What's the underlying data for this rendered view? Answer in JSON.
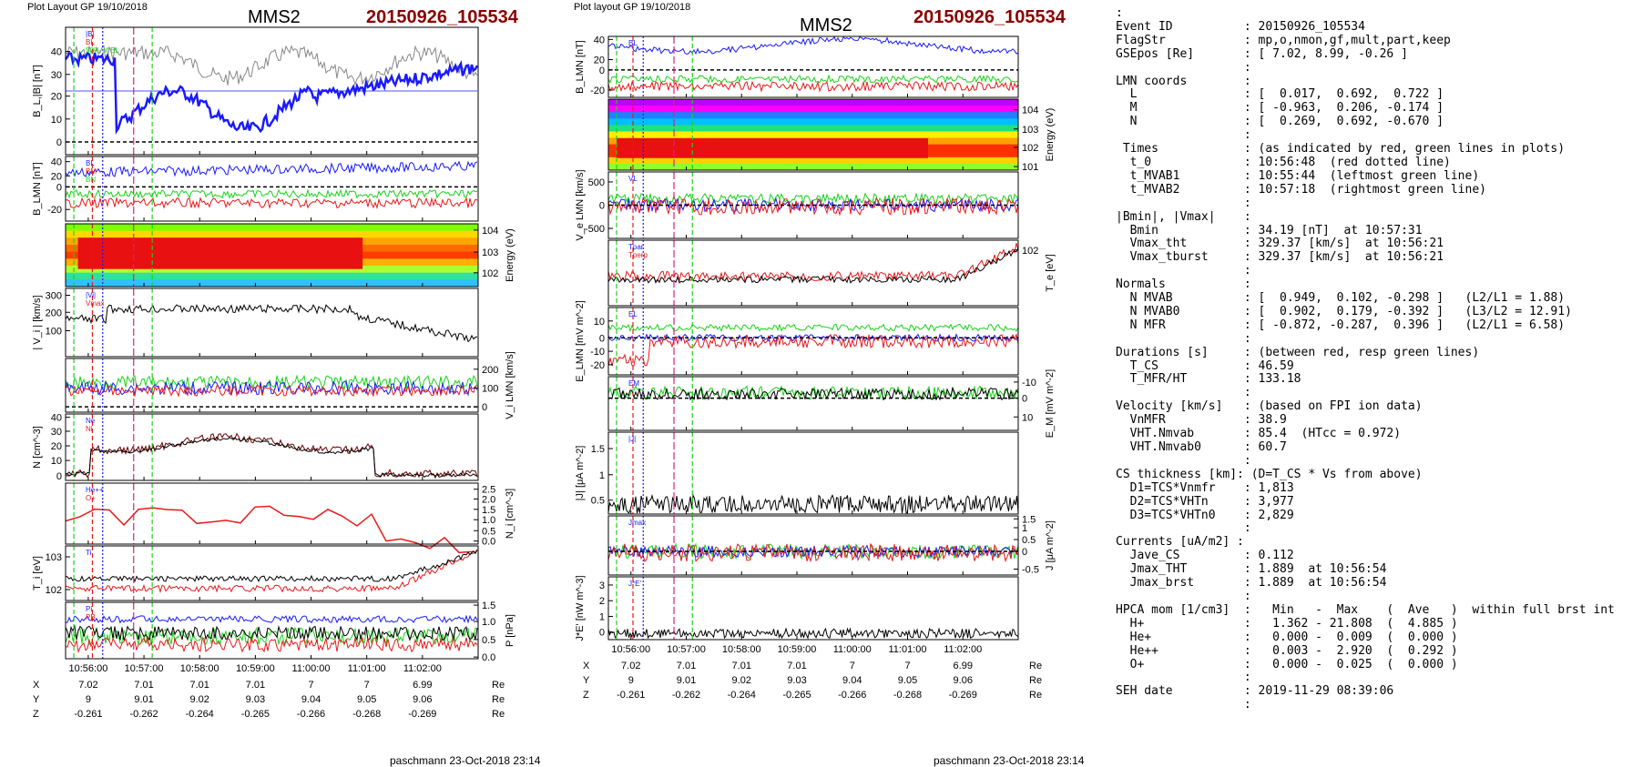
{
  "left_header": {
    "layout": "Plot Layout GP 19/10/2018",
    "title": "MMS2",
    "event": "20150926_105534"
  },
  "mid_header": {
    "layout": "Plot layout GP 19/10/2018",
    "title": "MMS2",
    "event": "20150926_105534"
  },
  "left_footer": "paschmann 23-Oct-2018 23:14",
  "mid_footer": "paschmann 23-Oct-2018 23:14",
  "colors": {
    "red": "#e8191b",
    "green": "#18d318",
    "blue": "#1a1aff",
    "magenta": "#e0207d",
    "event": "#8b0000"
  },
  "time_ticks": [
    "10:56:00",
    "10:57:00",
    "10:58:00",
    "10:59:00",
    "11:00:00",
    "11:01:00",
    "11:02:00"
  ],
  "ephemeris": {
    "labels": [
      "X",
      "Y",
      "Z"
    ],
    "unit": "Re",
    "X": [
      "7.02",
      "7.01",
      "7.01",
      "7.01",
      "7",
      "7",
      "6.99"
    ],
    "Y": [
      "9",
      "9.01",
      "9.02",
      "9.03",
      "9.04",
      "9.05",
      "9.06"
    ],
    "Z": [
      "-0.261",
      "-0.262",
      "-0.264",
      "-0.265",
      "-0.266",
      "-0.268",
      "-0.269"
    ]
  },
  "chart_data": [
    {
      "type": "line",
      "panels": [
        {
          "ylabel": "B_L,|B| [nT]",
          "yticks": [
            "0",
            "10",
            "20",
            "30",
            "40"
          ],
          "legend": [
            "|B|",
            "BL",
            "50% of BL"
          ]
        },
        {
          "ylabel": "B_LMN [nT]",
          "yticks": [
            "-20",
            "0",
            "20",
            "40"
          ],
          "legend": [
            "BL",
            "BM",
            "BN"
          ]
        },
        {
          "ylabel": "Energy (eV)",
          "yticks": [
            "10^2",
            "10^3",
            "10^4"
          ],
          "type": "heatmap"
        },
        {
          "ylabel": "| V_i | [km/s]",
          "yticks": [
            "100",
            "200",
            "300"
          ],
          "legend": [
            "|Vi|",
            "Vmax"
          ]
        },
        {
          "ylabel": "V_i LMN [km/s]",
          "yticks": [
            "0",
            "100",
            "200"
          ]
        },
        {
          "ylabel": "N [cm^-3]",
          "yticks": [
            "0",
            "10",
            "20",
            "30",
            "40"
          ],
          "legend": [
            "Ne",
            "Ni"
          ]
        },
        {
          "ylabel": "N_i [cm^-3]",
          "yticks": [
            "0.0",
            "0.5",
            "1.0",
            "1.5",
            "2.0",
            "2.5"
          ],
          "legend": [
            "He++",
            "O+"
          ]
        },
        {
          "ylabel": "T_i [eV]",
          "yticks": [
            "10^2",
            "10^3"
          ],
          "legend": [
            "Ti"
          ]
        },
        {
          "ylabel": "P [nPa]",
          "yticks": [
            "0.0",
            "0.5",
            "1.0",
            "1.5"
          ],
          "legend": [
            "Pi",
            "PB"
          ]
        }
      ]
    },
    {
      "type": "line",
      "panels": [
        {
          "ylabel": "B_LMN [nT]",
          "yticks": [
            "-20",
            "0",
            "20",
            "40"
          ],
          "legend": [
            "BL"
          ]
        },
        {
          "ylabel": "Energy (eV)",
          "yticks": [
            "10^1",
            "10^2",
            "10^3",
            "10^4"
          ],
          "type": "heatmap"
        },
        {
          "ylabel": "V_e LMN [km/s]",
          "yticks": [
            "-500",
            "0",
            "500"
          ],
          "legend": [
            "VL"
          ]
        },
        {
          "ylabel": "T_e [eV]",
          "yticks": [
            "10^2"
          ],
          "legend": [
            "Tpar",
            "Tperp"
          ]
        },
        {
          "ylabel": "E_LMN [mV m^-2]",
          "yticks": [
            "-20",
            "-10",
            "0",
            "10"
          ],
          "legend": [
            "EL"
          ]
        },
        {
          "ylabel": "E_M [mV m^-2]",
          "yticks": [
            "-10",
            "0",
            "10"
          ],
          "legend": [
            "EM"
          ]
        },
        {
          "ylabel": "|J| [μA m^-2]",
          "yticks": [
            "0.5",
            "1",
            "1.5"
          ],
          "legend": [
            "|J|"
          ]
        },
        {
          "ylabel": "J [μA m^-2]",
          "yticks": [
            "-0.5",
            "0",
            "0.5",
            "1",
            "1.5"
          ],
          "legend": [
            "Jmax"
          ]
        },
        {
          "ylabel": "J*E' [nW m^-3]",
          "yticks": [
            "0",
            "1",
            "2",
            "3"
          ],
          "legend": [
            "J*E'"
          ]
        }
      ]
    }
  ],
  "info_lines": [
    ":",
    "Event ID          : 20150926_105534",
    "FlagStr           : mp,o,nmon,gf,mult,part,keep",
    "GSEpos [Re]       : [ 7.02, 8.99, -0.26 ]",
    "                  :",
    "LMN coords        :",
    "  L               : [  0.017,  0.692,  0.722 ]",
    "  M               : [ -0.963,  0.206, -0.174 ]",
    "  N               : [  0.269,  0.692, -0.670 ]",
    "                  :",
    " Times            : (as indicated by red, green lines in plots)",
    "  t_0             : 10:56:48  (red dotted line)",
    "  t_MVAB1         : 10:55:44  (leftmost green line)",
    "  t_MVAB2         : 10:57:18  (rightmost green line)",
    "                  :",
    "|Bmin|, |Vmax|    :",
    "  Bmin            : 34.19 [nT]  at 10:57:31",
    "  Vmax_tht        : 329.37 [km/s]  at 10:56:21",
    "  Vmax_tburst     : 329.37 [km/s]  at 10:56:21",
    "                  :",
    "Normals           :",
    "  N MVAB          : [  0.949,  0.102, -0.298 ]   (L2/L1 = 1.88)",
    "  N MVAB0         : [  0.902,  0.179, -0.392 ]   (L3/L2 = 12.91)",
    "  N MFR           : [ -0.872, -0.287,  0.396 ]   (L2/L1 = 6.58)",
    "                  :",
    "Durations [s]     : (between red, resp green lines)",
    "  T_CS            : 46.59",
    "  T_MFR/HT        : 133.18",
    "                  :",
    "Velocity [km/s]   : (based on FPI ion data)",
    "  VnMFR           : 38.9",
    "  VHT.Nmvab       : 85.4  (HTcc = 0.972)",
    "  VHT.Nmvab0      : 60.7",
    "                  :",
    "CS thickness [km]: (D=T_CS * Vs from above)",
    "  D1=TCS*Vnmfr    : 1,813",
    "  D2=TCS*VHTn     : 3,977",
    "  D3=TCS*VHTn0    : 2,829",
    "                  :",
    "Currents [uA/m2] :",
    "  Jave_CS         : 0.112",
    "  Jmax_THT        : 1.889  at 10:56:54",
    "  Jmax_brst       : 1.889  at 10:56:54",
    "                  :",
    "HPCA mom [1/cm3]  :   Min   -  Max    (  Ave   )  within full brst int",
    "  H+              :   1.362 - 21.808  (  4.885 )",
    "  He+             :   0.000 -  0.009  (  0.000 )",
    "  He++            :   0.003 -  2.920  (  0.292 )",
    "  O+              :   0.000 -  0.025  (  0.000 )",
    "                  :",
    "SEH date          : 2019-11-29 08:39:06",
    "                  :"
  ]
}
